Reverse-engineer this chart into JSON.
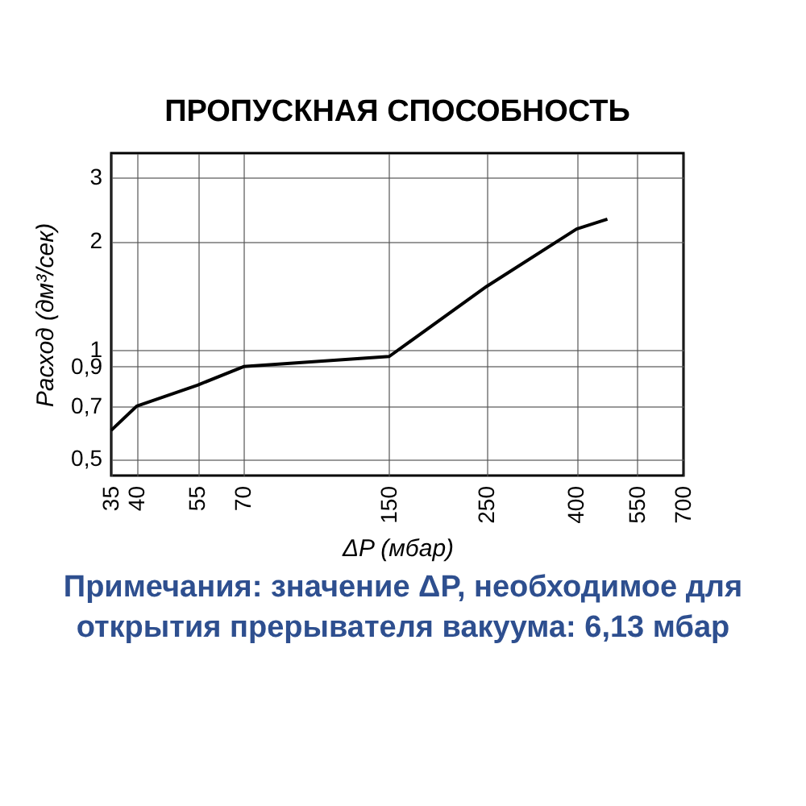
{
  "chart_data": {
    "type": "line",
    "title": "ПРОПУСКНАЯ СПОСОБНОСТЬ",
    "xlabel": "ΔP (мбар)",
    "ylabel": "Расход (дм³/сек)",
    "annotations": [
      "Примечания: значение ΔP, необходимое для открытия прерывателя вакуума: 6,13 мбар"
    ],
    "x": [
      35,
      40,
      55,
      70,
      150,
      250,
      400,
      470
    ],
    "series": [
      {
        "color": "#000000",
        "values": [
          0.6,
          0.7,
          0.8,
          0.9,
          0.96,
          1.5,
          2.16,
          2.3
        ]
      }
    ],
    "log": "xy",
    "xlim": [
      35,
      700
    ],
    "xticks": [
      35,
      40,
      55,
      70,
      150,
      250,
      400,
      550,
      700
    ],
    "ylim": [
      0.45,
      3.5
    ],
    "yticks": [
      {
        "value": 0.5,
        "label": "0,5"
      },
      {
        "value": 0.7,
        "label": "0,7"
      },
      {
        "value": 0.9,
        "label": "0,9"
      },
      1,
      2,
      3
    ],
    "grid": true,
    "marker": "none",
    "line_style": "solid"
  }
}
